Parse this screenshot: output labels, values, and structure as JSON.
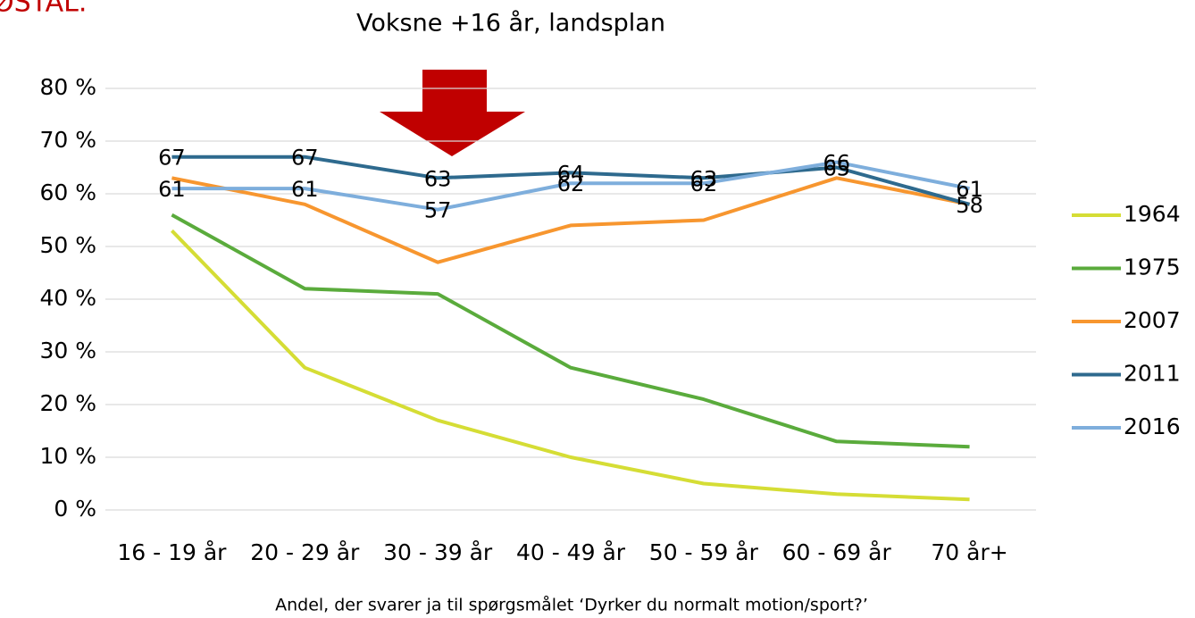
{
  "header": {
    "title": "ØSTAL."
  },
  "chart_data": {
    "type": "line",
    "title": "Voksne +16 år, landsplan",
    "x_label": "Andel, der svarer ja til spørgsmålet ‘Dyrker du normalt motion/sport?’",
    "categories": [
      "16 - 19 år",
      "20 - 29 år",
      "30 - 39 år",
      "40 - 49 år",
      "50 - 59 år",
      "60 - 69 år",
      "70 år+"
    ],
    "series": [
      {
        "name": "1964",
        "color": "#d5dd35",
        "values": [
          53,
          27,
          17,
          10,
          5,
          3,
          2
        ]
      },
      {
        "name": "1975",
        "color": "#5aab3c",
        "values": [
          56,
          42,
          41,
          27,
          21,
          13,
          12
        ]
      },
      {
        "name": "2007",
        "color": "#f7962f",
        "values": [
          63,
          58,
          47,
          54,
          55,
          63,
          58
        ]
      },
      {
        "name": "2011",
        "color": "#2e6a8e",
        "values": [
          67,
          67,
          63,
          64,
          63,
          65,
          58
        ],
        "data_labels": true
      },
      {
        "name": "2016",
        "color": "#7eaedc",
        "values": [
          61,
          61,
          57,
          62,
          62,
          66,
          61
        ],
        "data_labels": true
      }
    ],
    "ylim": [
      0,
      80
    ],
    "yticks": [
      {
        "value": 0,
        "label": "0 %"
      },
      {
        "value": 10,
        "label": "10 %"
      },
      {
        "value": 20,
        "label": "20 %"
      },
      {
        "value": 30,
        "label": "30 %"
      },
      {
        "value": 40,
        "label": "40 %"
      },
      {
        "value": 50,
        "label": "50 %"
      },
      {
        "value": 60,
        "label": "60 %"
      },
      {
        "value": 70,
        "label": "70 %"
      },
      {
        "value": 80,
        "label": "80 %"
      }
    ],
    "grid": true,
    "legend": "right"
  }
}
